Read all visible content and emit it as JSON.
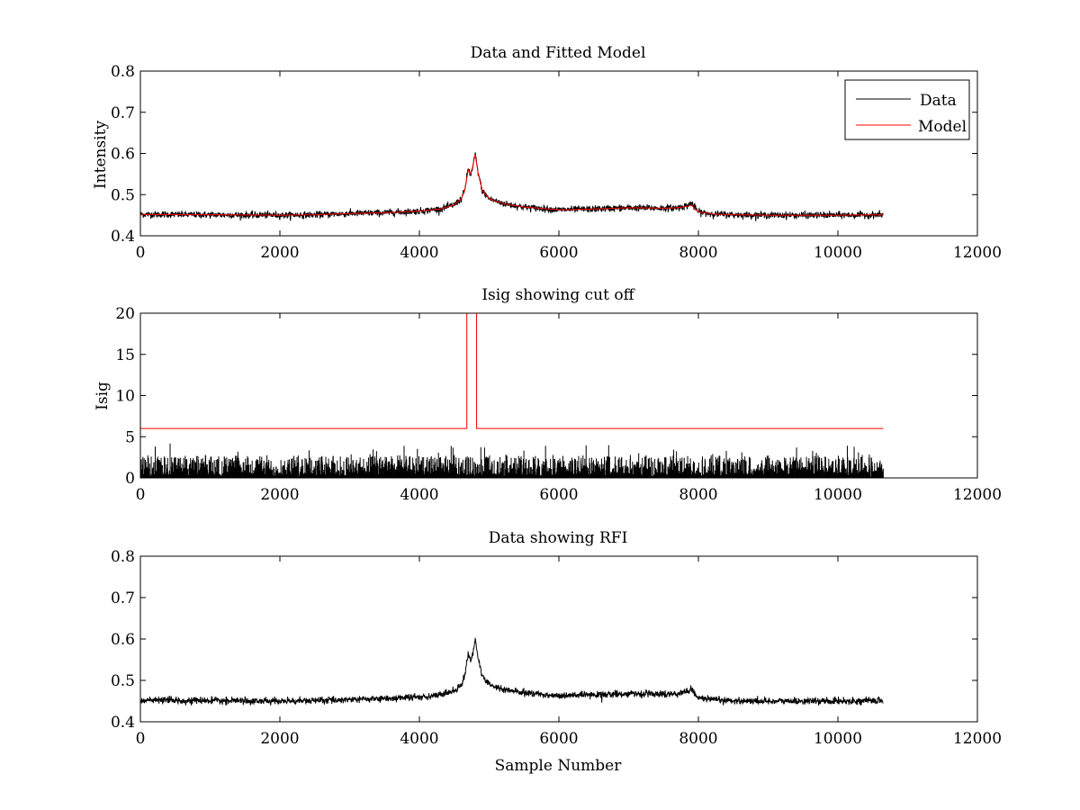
{
  "chart_data": [
    {
      "type": "line",
      "title": "Data and Fitted Model",
      "xlabel": "",
      "ylabel": "Intensity",
      "xlim": [
        0,
        12000
      ],
      "ylim": [
        0.4,
        0.8
      ],
      "xticks": [
        0,
        2000,
        4000,
        6000,
        8000,
        10000,
        12000
      ],
      "yticks": [
        0.4,
        0.5,
        0.6,
        0.7,
        0.8
      ],
      "xtick_labels": [
        "0",
        "2000",
        "4000",
        "6000",
        "8000",
        "10000",
        "12000"
      ],
      "ytick_labels": [
        "0.4",
        "0.5",
        "0.6",
        "0.7",
        "0.8"
      ],
      "legend": {
        "position": "top-right",
        "entries": [
          "Data",
          "Model"
        ]
      },
      "series": [
        {
          "name": "Data",
          "color": "#000000",
          "style": "noisy",
          "noise": 0.004,
          "x": [
            0,
            1000,
            2000,
            2500,
            3000,
            3500,
            4000,
            4300,
            4500,
            4600,
            4650,
            4700,
            4730,
            4760,
            4800,
            4840,
            4900,
            5000,
            5200,
            5500,
            6000,
            6500,
            7000,
            7500,
            7700,
            7850,
            7900,
            7950,
            8000,
            8200,
            8500,
            9000,
            10000,
            10650
          ],
          "y": [
            0.452,
            0.451,
            0.45,
            0.451,
            0.454,
            0.456,
            0.46,
            0.465,
            0.475,
            0.49,
            0.51,
            0.565,
            0.548,
            0.56,
            0.6,
            0.555,
            0.51,
            0.49,
            0.478,
            0.47,
            0.463,
            0.465,
            0.468,
            0.467,
            0.468,
            0.474,
            0.48,
            0.468,
            0.458,
            0.453,
            0.451,
            0.45,
            0.45,
            0.451
          ]
        },
        {
          "name": "Model",
          "color": "#ff0000",
          "style": "smooth",
          "x": [
            0,
            1000,
            2000,
            2500,
            3000,
            3500,
            4000,
            4300,
            4500,
            4600,
            4650,
            4700,
            4730,
            4760,
            4800,
            4840,
            4900,
            5000,
            5200,
            5500,
            6000,
            6500,
            7000,
            7500,
            7700,
            7850,
            7900,
            7950,
            8000,
            8200,
            8500,
            9000,
            10000,
            10650
          ],
          "y": [
            0.452,
            0.451,
            0.45,
            0.451,
            0.454,
            0.456,
            0.46,
            0.465,
            0.475,
            0.49,
            0.51,
            0.56,
            0.55,
            0.565,
            0.598,
            0.555,
            0.51,
            0.49,
            0.478,
            0.47,
            0.463,
            0.465,
            0.468,
            0.467,
            0.468,
            0.472,
            0.474,
            0.466,
            0.458,
            0.453,
            0.451,
            0.45,
            0.45,
            0.451
          ]
        }
      ]
    },
    {
      "type": "line",
      "title": "Isig showing cut off",
      "xlabel": "",
      "ylabel": "Isig",
      "xlim": [
        0,
        12000
      ],
      "ylim": [
        0,
        20
      ],
      "xticks": [
        0,
        2000,
        4000,
        6000,
        8000,
        10000,
        12000
      ],
      "yticks": [
        0,
        5,
        10,
        15,
        20
      ],
      "xtick_labels": [
        "0",
        "2000",
        "4000",
        "6000",
        "8000",
        "10000",
        "12000"
      ],
      "ytick_labels": [
        "0",
        "5",
        "10",
        "15",
        "20"
      ],
      "series": [
        {
          "name": "Isig",
          "color": "#000000",
          "style": "spikes",
          "x_start": 0,
          "x_end": 10650,
          "typical_max": 2.5,
          "peak_max": 4.2
        },
        {
          "name": "Cut off",
          "color": "#ff0000",
          "style": "step",
          "x": [
            0,
            4680,
            4680,
            4820,
            4820,
            10650
          ],
          "y": [
            6,
            6,
            20,
            20,
            6,
            6
          ]
        }
      ]
    },
    {
      "type": "line",
      "title": "Data showing RFI",
      "xlabel": "Sample Number",
      "ylabel": "",
      "xlim": [
        0,
        12000
      ],
      "ylim": [
        0.4,
        0.8
      ],
      "xticks": [
        0,
        2000,
        4000,
        6000,
        8000,
        10000,
        12000
      ],
      "yticks": [
        0.4,
        0.5,
        0.6,
        0.7,
        0.8
      ],
      "xtick_labels": [
        "0",
        "2000",
        "4000",
        "6000",
        "8000",
        "10000",
        "12000"
      ],
      "ytick_labels": [
        "0.4",
        "0.5",
        "0.6",
        "0.7",
        "0.8"
      ],
      "series": [
        {
          "name": "Data",
          "color": "#000000",
          "style": "noisy",
          "noise": 0.004,
          "x": [
            0,
            1000,
            2000,
            2500,
            3000,
            3500,
            4000,
            4300,
            4500,
            4600,
            4650,
            4700,
            4730,
            4760,
            4800,
            4840,
            4900,
            5000,
            5200,
            5500,
            6000,
            6500,
            7000,
            7500,
            7700,
            7850,
            7900,
            7950,
            8000,
            8200,
            8500,
            9000,
            10000,
            10650
          ],
          "y": [
            0.452,
            0.451,
            0.45,
            0.451,
            0.454,
            0.456,
            0.46,
            0.465,
            0.475,
            0.49,
            0.51,
            0.568,
            0.548,
            0.56,
            0.6,
            0.555,
            0.51,
            0.49,
            0.478,
            0.47,
            0.463,
            0.465,
            0.468,
            0.467,
            0.468,
            0.474,
            0.48,
            0.468,
            0.458,
            0.453,
            0.451,
            0.45,
            0.45,
            0.451
          ]
        }
      ]
    }
  ]
}
